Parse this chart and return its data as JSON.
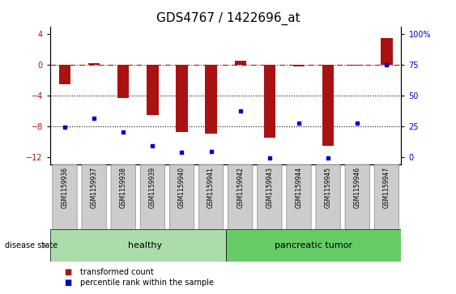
{
  "title": "GDS4767 / 1422696_at",
  "samples": [
    "GSM1159936",
    "GSM1159937",
    "GSM1159938",
    "GSM1159939",
    "GSM1159940",
    "GSM1159941",
    "GSM1159942",
    "GSM1159943",
    "GSM1159944",
    "GSM1159945",
    "GSM1159946",
    "GSM1159947"
  ],
  "bar_values": [
    -2.5,
    0.2,
    -4.3,
    -6.5,
    -8.8,
    -9.0,
    0.5,
    -9.5,
    -0.2,
    -10.5,
    -0.1,
    3.5
  ],
  "scatter_values": [
    -8.1,
    -7.0,
    -8.8,
    -10.5,
    -11.4,
    -11.3,
    -6.0,
    -12.1,
    -7.6,
    -12.1,
    -7.6,
    0.0
  ],
  "bar_color": "#AA1111",
  "scatter_color": "#0000CC",
  "left_ylim": [
    -13,
    5
  ],
  "left_yticks": [
    -12,
    -8,
    -4,
    0,
    4
  ],
  "right_yticks_val": [
    -12,
    -8,
    -4,
    0,
    4
  ],
  "right_yticks_label": [
    "0",
    "25",
    "50",
    "75",
    "100%"
  ],
  "hline_y": 0,
  "dotted_lines": [
    -4,
    -8
  ],
  "healthy_count": 6,
  "group_labels": [
    "healthy",
    "pancreatic tumor"
  ],
  "healthy_color": "#AADDAA",
  "tumor_color": "#66CC66",
  "disease_state_label": "disease state",
  "legend_bar_label": "transformed count",
  "legend_scatter_label": "percentile rank within the sample",
  "bar_width": 0.4,
  "title_fontsize": 11,
  "tick_fontsize": 7,
  "label_fontsize": 8,
  "xtick_box_color": "#CCCCCC"
}
